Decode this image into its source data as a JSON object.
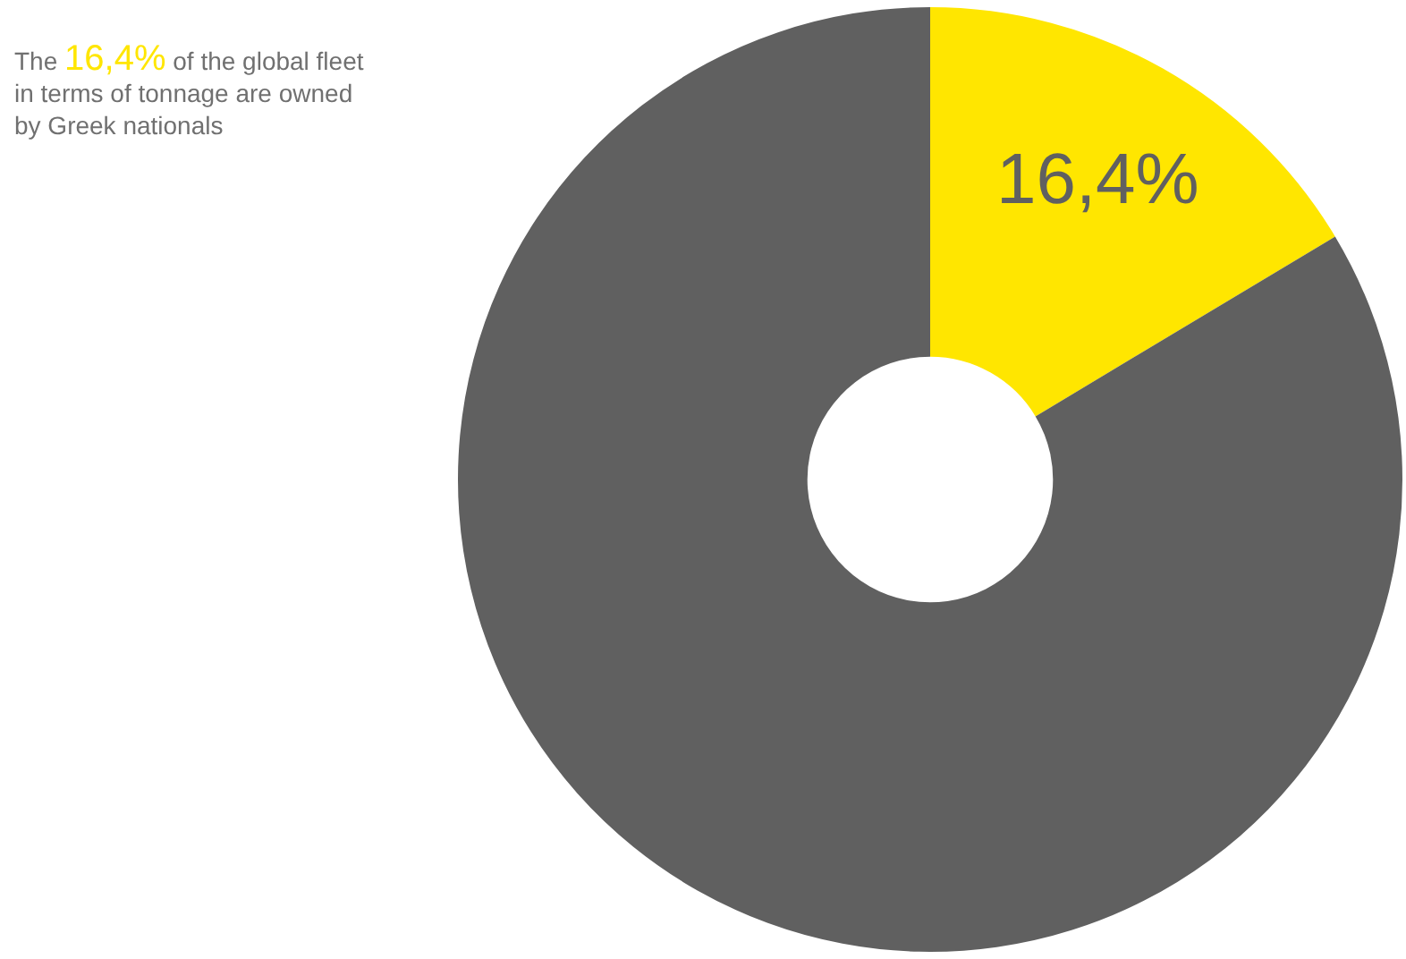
{
  "chart_data": {
    "type": "donut",
    "title": "The 16,4% of the global fleet in terms of tonnage are owned by Greek nationals",
    "categories": [
      null,
      null
    ],
    "values": [
      16.4,
      83.6
    ],
    "colors": [
      "#ffe600",
      "#606060"
    ],
    "value_labels": [
      "16,4%",
      null
    ],
    "legend": false
  }
}
